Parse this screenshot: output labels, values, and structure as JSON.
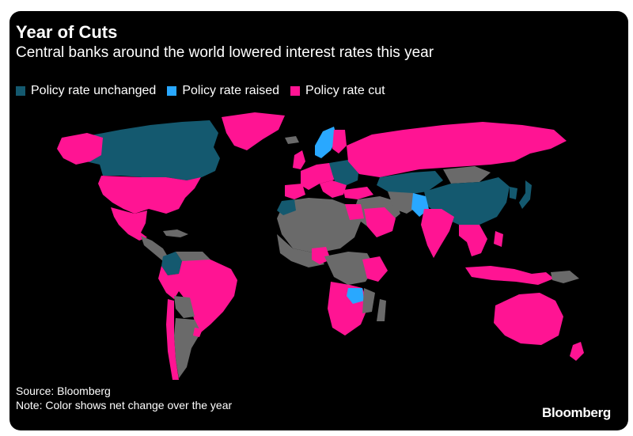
{
  "header": {
    "title": "Year of Cuts",
    "subtitle": "Central banks around the world lowered interest rates this year"
  },
  "legend": {
    "items": [
      {
        "label": "Policy rate unchanged",
        "color": "#14596f"
      },
      {
        "label": "Policy rate raised",
        "color": "#29a8ff"
      },
      {
        "label": "Policy rate cut",
        "color": "#ff1493"
      }
    ]
  },
  "colors": {
    "no_data": "#6a6a6a",
    "background": "#000000"
  },
  "footer": {
    "source": "Source: Bloomberg",
    "note": "Note: Color shows net change over the year"
  },
  "brand": {
    "logo_text": "Bloomberg"
  }
}
